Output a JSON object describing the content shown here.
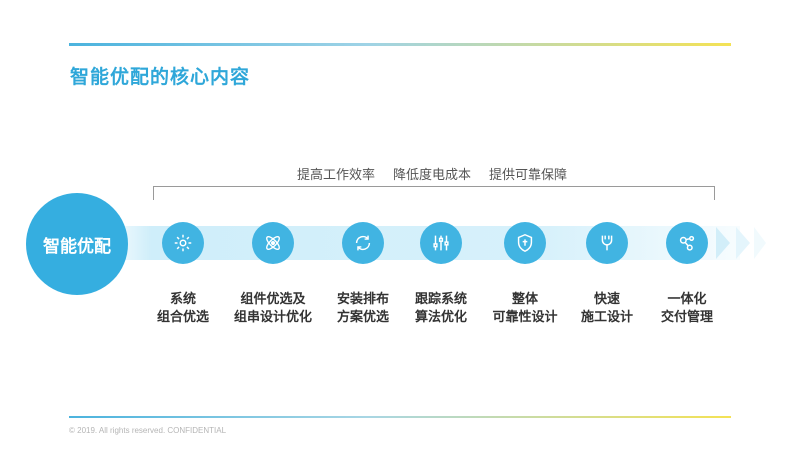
{
  "title": "智能优配的核心内容",
  "goals": [
    "提高工作效率",
    "降低度电成本",
    "提供可靠保障"
  ],
  "hub": "智能优配",
  "steps": [
    {
      "icon": "gear-icon",
      "line1": "系统",
      "line2": "组合优选"
    },
    {
      "icon": "atom-icon",
      "line1": "组件优选及",
      "line2": "组串设计优化"
    },
    {
      "icon": "refresh-cycle-icon",
      "line1": "安装排布",
      "line2": "方案优选"
    },
    {
      "icon": "sliders-icon",
      "line1": "跟踪系统",
      "line2": "算法优化"
    },
    {
      "icon": "shield-icon",
      "line1": "整体",
      "line2": "可靠性设计"
    },
    {
      "icon": "wrench-icon",
      "line1": "快速",
      "line2": "施工设计"
    },
    {
      "icon": "network-nodes-icon",
      "line1": "一体化",
      "line2": "交付管理"
    }
  ],
  "footer": "© 2019. All rights reserved. CONFIDENTIAL",
  "colors": {
    "accent": "#35aee0",
    "band": "#d7f1fb",
    "title": "#2fa7d9"
  }
}
